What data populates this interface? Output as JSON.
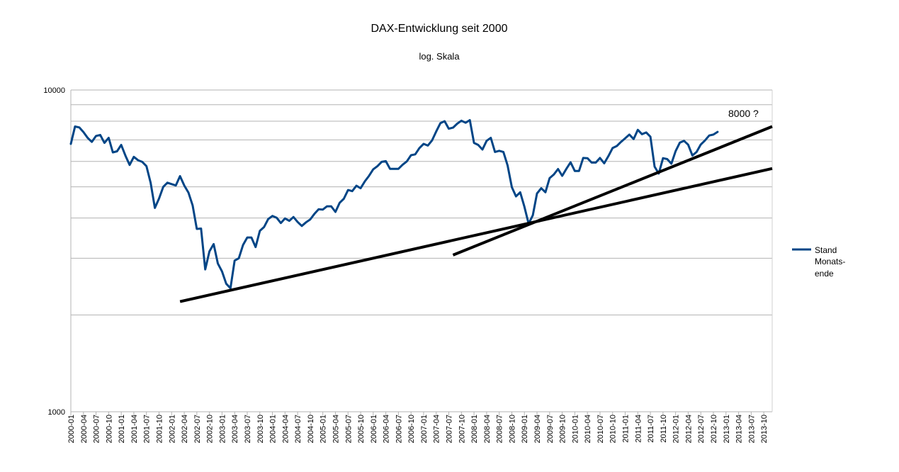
{
  "chart_data": {
    "type": "line",
    "title": "DAX-Entwicklung seit 2000",
    "subtitle": "log. Skala",
    "annotation": "8000 ?",
    "yscale": "log",
    "ylim": [
      1000,
      10000
    ],
    "y_tick_labels": [
      "1000",
      "10000"
    ],
    "y_gridlines": [
      1000,
      2000,
      3000,
      4000,
      5000,
      6000,
      7000,
      8000,
      9000,
      10000
    ],
    "x_start": "2000-01",
    "x_end": "2013-12",
    "x_tick_labels": [
      "2000-01",
      "2000-04",
      "2000-07",
      "2000-10",
      "2001-01",
      "2001-04",
      "2001-07",
      "2001-10",
      "2002-01",
      "2002-04",
      "2002-07",
      "2002-10",
      "2003-01",
      "2003-04",
      "2003-07",
      "2003-10",
      "2004-01",
      "2004-04",
      "2004-07",
      "2004-10",
      "2005-01",
      "2005-04",
      "2005-07",
      "2005-10",
      "2006-01",
      "2006-04",
      "2006-07",
      "2006-10",
      "2007-01",
      "2007-04",
      "2007-07",
      "2007-10",
      "2008-01",
      "2008-04",
      "2008-07",
      "2008-10",
      "2009-01",
      "2009-04",
      "2009-07",
      "2009-10",
      "2010-01",
      "2010-04",
      "2010-07",
      "2010-10",
      "2011-01",
      "2011-04",
      "2011-07",
      "2011-10",
      "2012-01",
      "2012-04",
      "2012-07",
      "2012-10",
      "2013-01",
      "2013-04",
      "2013-07",
      "2013-10"
    ],
    "legend": {
      "position": "right",
      "label_lines": [
        "Stand",
        "Monats-",
        "ende"
      ]
    },
    "grid": true,
    "series": [
      {
        "name": "Stand Monatsende",
        "color": "#004586",
        "x": [
          "2000-01",
          "2000-02",
          "2000-03",
          "2000-04",
          "2000-05",
          "2000-06",
          "2000-07",
          "2000-08",
          "2000-09",
          "2000-10",
          "2000-11",
          "2000-12",
          "2001-01",
          "2001-02",
          "2001-03",
          "2001-04",
          "2001-05",
          "2001-06",
          "2001-07",
          "2001-08",
          "2001-09",
          "2001-10",
          "2001-11",
          "2001-12",
          "2002-01",
          "2002-02",
          "2002-03",
          "2002-04",
          "2002-05",
          "2002-06",
          "2002-07",
          "2002-08",
          "2002-09",
          "2002-10",
          "2002-11",
          "2002-12",
          "2003-01",
          "2003-02",
          "2003-03",
          "2003-04",
          "2003-05",
          "2003-06",
          "2003-07",
          "2003-08",
          "2003-09",
          "2003-10",
          "2003-11",
          "2003-12",
          "2004-01",
          "2004-02",
          "2004-03",
          "2004-04",
          "2004-05",
          "2004-06",
          "2004-07",
          "2004-08",
          "2004-09",
          "2004-10",
          "2004-11",
          "2004-12",
          "2005-01",
          "2005-02",
          "2005-03",
          "2005-04",
          "2005-05",
          "2005-06",
          "2005-07",
          "2005-08",
          "2005-09",
          "2005-10",
          "2005-11",
          "2005-12",
          "2006-01",
          "2006-02",
          "2006-03",
          "2006-04",
          "2006-05",
          "2006-06",
          "2006-07",
          "2006-08",
          "2006-09",
          "2006-10",
          "2006-11",
          "2006-12",
          "2007-01",
          "2007-02",
          "2007-03",
          "2007-04",
          "2007-05",
          "2007-06",
          "2007-07",
          "2007-08",
          "2007-09",
          "2007-10",
          "2007-11",
          "2007-12",
          "2008-01",
          "2008-02",
          "2008-03",
          "2008-04",
          "2008-05",
          "2008-06",
          "2008-07",
          "2008-08",
          "2008-09",
          "2008-10",
          "2008-11",
          "2008-12",
          "2009-01",
          "2009-02",
          "2009-03",
          "2009-04",
          "2009-05",
          "2009-06",
          "2009-07",
          "2009-08",
          "2009-09",
          "2009-10",
          "2009-11",
          "2009-12",
          "2010-01",
          "2010-02",
          "2010-03",
          "2010-04",
          "2010-05",
          "2010-06",
          "2010-07",
          "2010-08",
          "2010-09",
          "2010-10",
          "2010-11",
          "2010-12",
          "2011-01",
          "2011-02",
          "2011-03",
          "2011-04",
          "2011-05",
          "2011-06",
          "2011-07",
          "2011-08",
          "2011-09",
          "2011-10",
          "2011-11",
          "2011-12",
          "2012-01",
          "2012-02",
          "2012-03",
          "2012-04",
          "2012-05",
          "2012-06",
          "2012-07",
          "2012-08",
          "2012-09",
          "2012-10",
          "2012-11"
        ],
        "values": [
          6800,
          7700,
          7650,
          7400,
          7100,
          6900,
          7200,
          7250,
          6850,
          7100,
          6400,
          6450,
          6750,
          6250,
          5850,
          6200,
          6050,
          5980,
          5800,
          5150,
          4300,
          4600,
          5000,
          5150,
          5100,
          5050,
          5400,
          5050,
          4800,
          4380,
          3700,
          3710,
          2770,
          3150,
          3320,
          2890,
          2730,
          2500,
          2420,
          2950,
          3000,
          3300,
          3480,
          3480,
          3250,
          3650,
          3750,
          3970,
          4060,
          4010,
          3860,
          3990,
          3920,
          4030,
          3890,
          3780,
          3880,
          3960,
          4120,
          4260,
          4250,
          4350,
          4350,
          4180,
          4460,
          4590,
          4890,
          4850,
          5040,
          4950,
          5200,
          5410,
          5670,
          5800,
          5980,
          6010,
          5690,
          5690,
          5690,
          5860,
          6000,
          6270,
          6310,
          6600,
          6800,
          6720,
          6970,
          7430,
          7890,
          8000,
          7580,
          7640,
          7860,
          8030,
          7910,
          8060,
          6850,
          6750,
          6530,
          6950,
          7100,
          6420,
          6470,
          6420,
          5830,
          4990,
          4670,
          4810,
          4340,
          3840,
          4080,
          4770,
          4950,
          4810,
          5320,
          5460,
          5680,
          5410,
          5690,
          5960,
          5600,
          5600,
          6150,
          6140,
          5950,
          5950,
          6150,
          5920,
          6230,
          6600,
          6700,
          6900,
          7080,
          7270,
          7040,
          7520,
          7290,
          7380,
          7160,
          5780,
          5500,
          6140,
          6100,
          5900,
          6460,
          6860,
          6950,
          6760,
          6260,
          6420,
          6770,
          6970,
          7220,
          7270,
          7410
        ]
      }
    ],
    "trendlines": [
      {
        "from": {
          "x": "2002-03",
          "y": 2200
        },
        "to": {
          "x": "2013-12",
          "y": 5700
        }
      },
      {
        "from": {
          "x": "2007-08",
          "y": 3070
        },
        "to": {
          "x": "2013-12",
          "y": 7700
        }
      }
    ]
  }
}
